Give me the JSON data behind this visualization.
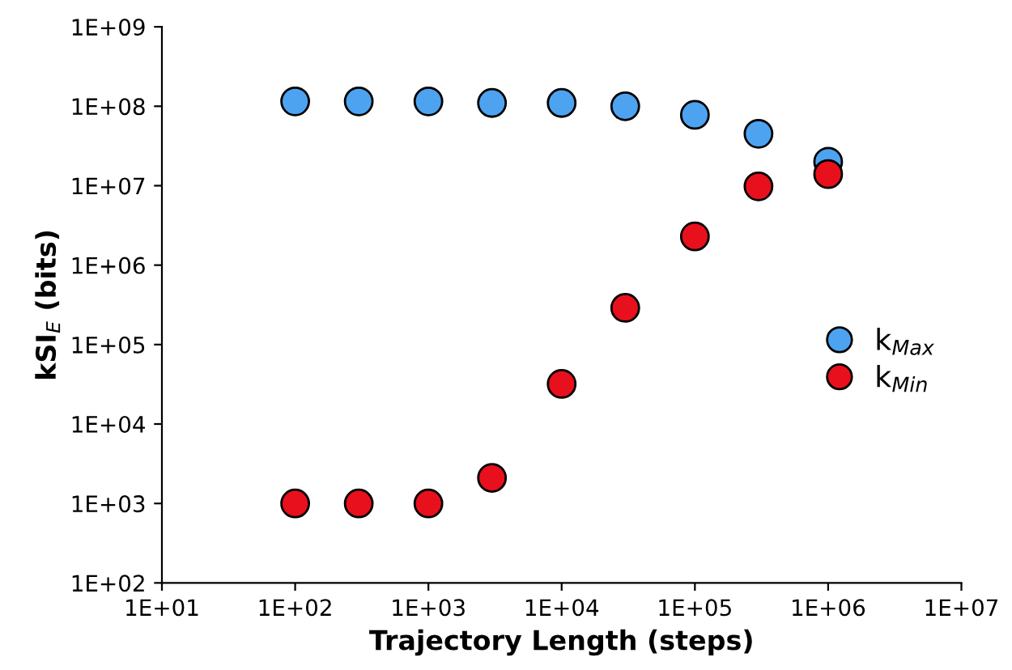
{
  "chart_data": {
    "type": "scatter",
    "xlabel": "Trajectory Length (steps)",
    "ylabel": "kSI$_{E}$ (bits)",
    "log": "xy",
    "marker": "circle",
    "legend": "right",
    "grid": false,
    "xlim": [
      10,
      10000000
    ],
    "ylim": [
      100,
      1000000000
    ],
    "xticks": [
      {
        "value": 10,
        "label": "1E+01"
      },
      {
        "value": 100,
        "label": "1E+02"
      },
      {
        "value": 1000,
        "label": "1E+03"
      },
      {
        "value": 10000,
        "label": "1E+04"
      },
      {
        "value": 100000,
        "label": "1E+05"
      },
      {
        "value": 1000000,
        "label": "1E+06"
      },
      {
        "value": 10000000,
        "label": "1E+07"
      }
    ],
    "yticks": [
      {
        "value": 100,
        "label": "1E+02"
      },
      {
        "value": 1000,
        "label": "1E+03"
      },
      {
        "value": 10000,
        "label": "1E+04"
      },
      {
        "value": 100000,
        "label": "1E+05"
      },
      {
        "value": 1000000,
        "label": "1E+06"
      },
      {
        "value": 10000000,
        "label": "1E+07"
      },
      {
        "value": 100000000,
        "label": "1E+08"
      },
      {
        "value": 1000000000,
        "label": "1E+09"
      }
    ],
    "x": [
      100,
      300,
      1000,
      3000,
      10000,
      30000,
      100000,
      300000,
      1000000
    ],
    "series": [
      {
        "name": "k$_{Max}$",
        "color": "#4da3f0",
        "values": [
          115000000,
          115000000,
          115000000,
          110000000,
          110000000,
          100000000,
          78000000,
          45000000,
          20000000
        ]
      },
      {
        "name": "k$_{Min}$",
        "color": "#e8101c",
        "values": [
          1000,
          1000,
          1000,
          2100,
          32000,
          290000,
          2300000,
          9800000,
          14000000
        ]
      }
    ]
  }
}
